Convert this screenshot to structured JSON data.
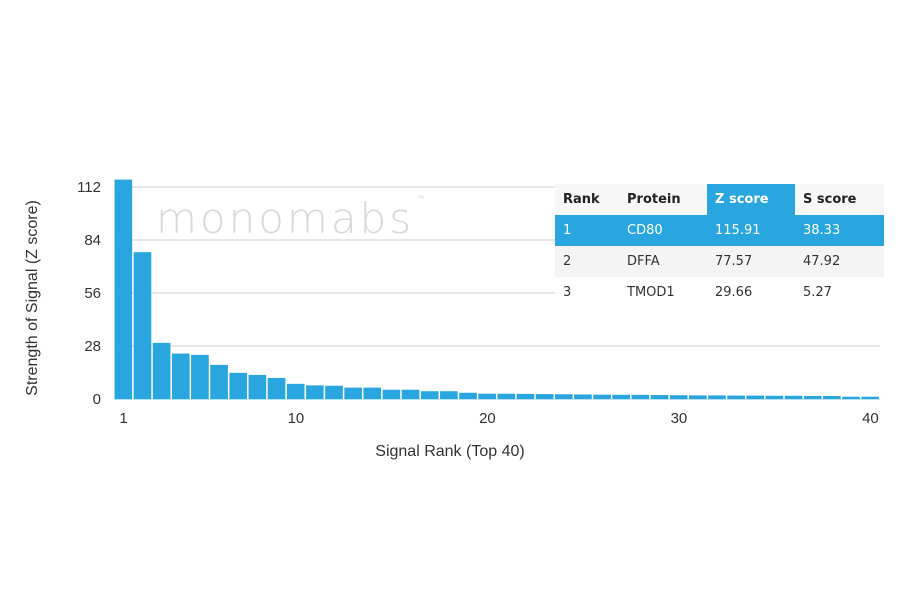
{
  "chart_data": {
    "type": "bar",
    "title": "",
    "xlabel": "Signal Rank (Top 40)",
    "ylabel": "Strength of Signal (Z score)",
    "ylim": [
      0,
      112
    ],
    "yticks": [
      0,
      28,
      56,
      84,
      112
    ],
    "xticks": [
      1,
      10,
      20,
      30,
      40
    ],
    "grid": true,
    "bar_color": "#29a6df",
    "categories": [
      1,
      2,
      3,
      4,
      5,
      6,
      7,
      8,
      9,
      10,
      11,
      12,
      13,
      14,
      15,
      16,
      17,
      18,
      19,
      20,
      21,
      22,
      23,
      24,
      25,
      26,
      27,
      28,
      29,
      30,
      31,
      32,
      33,
      34,
      35,
      36,
      37,
      38,
      39,
      40
    ],
    "values": [
      115.91,
      77.57,
      29.66,
      24.0,
      23.3,
      18.0,
      13.8,
      12.7,
      11.1,
      8.0,
      7.2,
      7.0,
      6.0,
      6.0,
      4.9,
      4.9,
      4.1,
      4.1,
      3.3,
      2.8,
      2.8,
      2.7,
      2.6,
      2.5,
      2.4,
      2.3,
      2.2,
      2.2,
      2.1,
      2.0,
      1.9,
      1.9,
      1.8,
      1.8,
      1.7,
      1.7,
      1.6,
      1.6,
      1.2,
      1.2
    ]
  },
  "watermark": {
    "text": "monomabs",
    "tm": "™"
  },
  "table": {
    "headers": [
      "Rank",
      "Protein",
      "Z score",
      "S score"
    ],
    "rows": [
      [
        "1",
        "CD80",
        "115.91",
        "38.33"
      ],
      [
        "2",
        "DFFA",
        "77.57",
        "47.92"
      ],
      [
        "3",
        "TMOD1",
        "29.66",
        "5.27"
      ]
    ],
    "highlight_color": "#29a6df"
  }
}
